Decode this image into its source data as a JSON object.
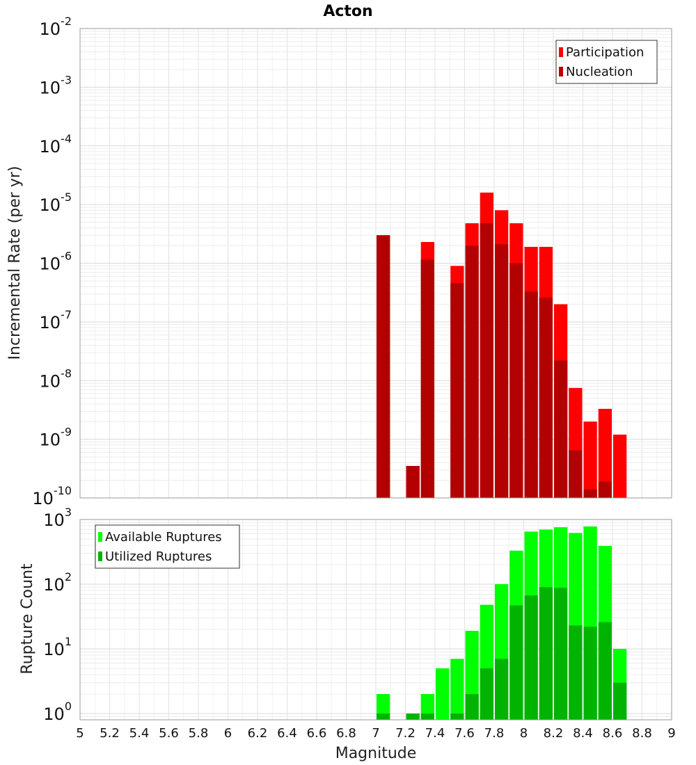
{
  "chart_data": [
    {
      "type": "bar",
      "title": "Acton",
      "ylabel": "Incremental Rate (per yr)",
      "xlabel": "",
      "xlim": [
        5,
        9
      ],
      "ylim": [
        1e-10,
        0.01
      ],
      "yscale": "log",
      "grid": true,
      "legend_position": "top-right",
      "bin_width": 0.1,
      "y_ticks": [
        {
          "base": "10",
          "exp": "-10"
        },
        {
          "base": "10",
          "exp": "-9"
        },
        {
          "base": "10",
          "exp": "-8"
        },
        {
          "base": "10",
          "exp": "-7"
        },
        {
          "base": "10",
          "exp": "-6"
        },
        {
          "base": "10",
          "exp": "-5"
        },
        {
          "base": "10",
          "exp": "-4"
        },
        {
          "base": "10",
          "exp": "-3"
        },
        {
          "base": "10",
          "exp": "-2"
        }
      ],
      "series": [
        {
          "name": "Participation",
          "color": "#ff0000",
          "x": [
            7.05,
            7.25,
            7.35,
            7.55,
            7.65,
            7.75,
            7.85,
            7.95,
            8.05,
            8.15,
            8.25,
            8.35,
            8.45,
            8.55,
            8.65
          ],
          "values": [
            3e-06,
            3.5e-10,
            2.3e-06,
            9e-07,
            4.8e-06,
            1.6e-05,
            8e-06,
            4.8e-06,
            1.9e-06,
            1.9e-06,
            2e-07,
            7.5e-09,
            2e-09,
            3.3e-09,
            1.2e-09
          ]
        },
        {
          "name": "Nucleation",
          "color": "#b30000",
          "x": [
            7.05,
            7.25,
            7.35,
            7.55,
            7.65,
            7.75,
            7.85,
            7.95,
            8.05,
            8.15,
            8.25,
            8.35,
            8.45,
            8.55,
            8.65
          ],
          "values": [
            3e-06,
            3.5e-10,
            1.15e-06,
            4.6e-07,
            2e-06,
            4.8e-06,
            2.1e-06,
            1e-06,
            3.3e-07,
            2.6e-07,
            2.2e-08,
            6.5e-10,
            1.4e-10,
            1.9e-10,
            null
          ]
        }
      ]
    },
    {
      "type": "bar",
      "title": "",
      "ylabel": "Rupture Count",
      "xlabel": "Magnitude",
      "xlim": [
        5,
        9
      ],
      "ylim": [
        0.8,
        1000
      ],
      "yscale": "log",
      "grid": true,
      "legend_position": "top-left",
      "bin_width": 0.1,
      "x_ticks": [
        "5",
        "5.2",
        "5.4",
        "5.6",
        "5.8",
        "6",
        "6.2",
        "6.4",
        "6.6",
        "6.8",
        "7",
        "7.2",
        "7.4",
        "7.6",
        "7.8",
        "8",
        "8.2",
        "8.4",
        "8.6",
        "8.8",
        "9"
      ],
      "y_ticks": [
        {
          "base": "10",
          "exp": "0"
        },
        {
          "base": "10",
          "exp": "1"
        },
        {
          "base": "10",
          "exp": "2"
        },
        {
          "base": "10",
          "exp": "3"
        }
      ],
      "series": [
        {
          "name": "Available Ruptures",
          "color": "#00ff00",
          "x": [
            7.05,
            7.25,
            7.35,
            7.45,
            7.55,
            7.65,
            7.75,
            7.85,
            7.95,
            8.05,
            8.15,
            8.25,
            8.35,
            8.45,
            8.55,
            8.65
          ],
          "values": [
            2,
            1,
            2,
            5,
            7,
            19,
            48,
            100,
            330,
            650,
            700,
            760,
            620,
            780,
            390,
            10
          ]
        },
        {
          "name": "Utilized Ruptures",
          "color": "#00b300",
          "x": [
            7.05,
            7.25,
            7.35,
            7.45,
            7.55,
            7.65,
            7.75,
            7.85,
            7.95,
            8.05,
            8.15,
            8.25,
            8.35,
            8.45,
            8.55,
            8.65
          ],
          "values": [
            1,
            1,
            1,
            null,
            1,
            2,
            5,
            7,
            47,
            67,
            90,
            88,
            23,
            22,
            26,
            3
          ]
        }
      ]
    }
  ]
}
